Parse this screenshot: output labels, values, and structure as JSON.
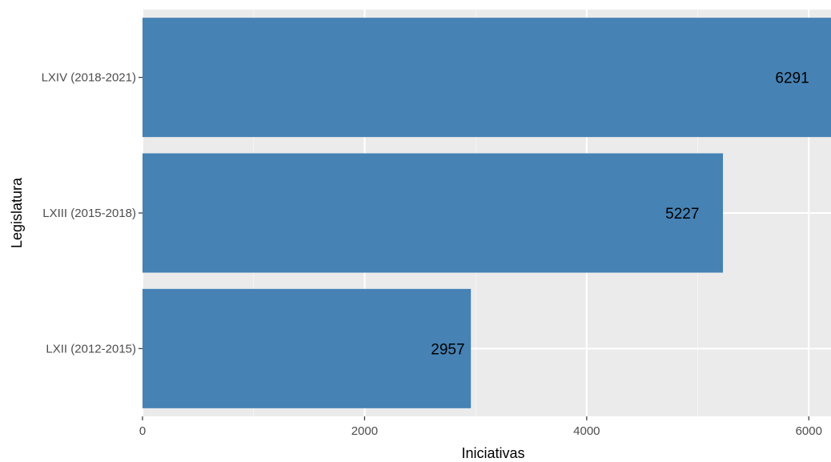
{
  "chart_data": {
    "type": "bar",
    "orientation": "horizontal",
    "title": "",
    "xlabel": "Iniciativas",
    "ylabel": "Legislatura",
    "categories": [
      "LXII (2012-2015)",
      "LXIII (2015-2018)",
      "LXIV (2018-2021)"
    ],
    "values": [
      2957,
      5227,
      6291
    ],
    "data_labels": [
      "2957",
      "5227",
      "6291"
    ],
    "x_ticks": [
      0,
      2000,
      4000,
      6000
    ],
    "x_tick_labels": [
      "0",
      "2000",
      "4000",
      "6000"
    ],
    "xlim": [
      0,
      6200
    ],
    "grid": true,
    "legend": "none",
    "colors": {
      "bar": "#4682B4",
      "panel_background": "#EBEBEB",
      "grid_major": "#FFFFFF",
      "grid_minor": "#F5F5F5"
    }
  }
}
